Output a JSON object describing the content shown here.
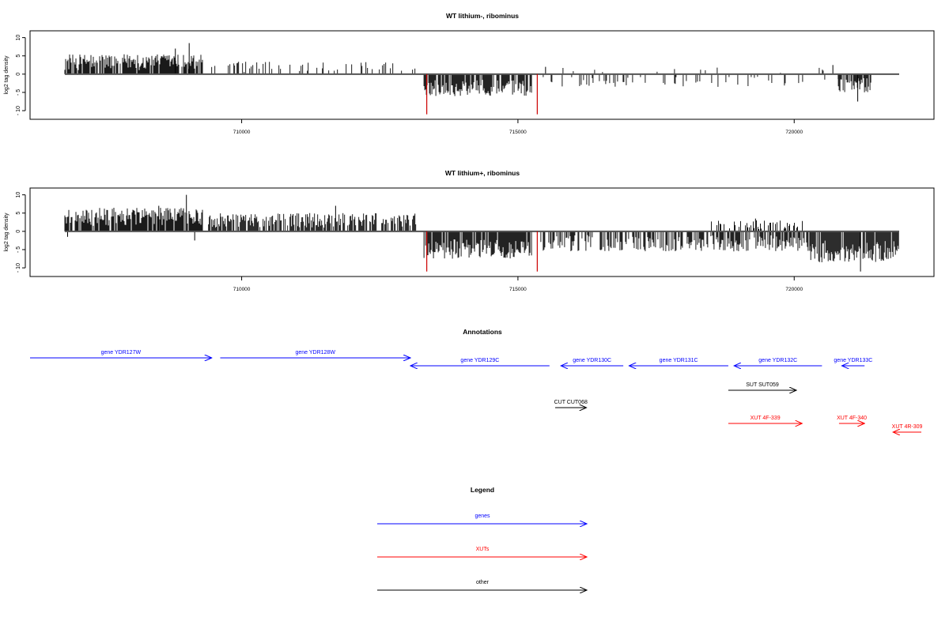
{
  "chart_data": [
    {
      "type": "bar",
      "title": "WT lithium-, ribominus",
      "ylabel": "log2 tag density",
      "ylim": [
        -11.5,
        11
      ],
      "yticks": [
        10,
        5,
        0,
        -5,
        -10
      ],
      "xlim": [
        706400,
        722300
      ],
      "xticks": [
        710000,
        715000,
        720000
      ],
      "bar_color": "#000000",
      "highlight_color": "#cc0000",
      "regions": [
        {
          "from": 706800,
          "to": 709300,
          "strand": "+",
          "min": 1.0,
          "max": 5.5,
          "density": 0.8
        },
        {
          "from": 709400,
          "to": 713150,
          "strand": "+",
          "min": 0.5,
          "max": 3.5,
          "density": 0.22
        },
        {
          "from": 713300,
          "to": 715250,
          "strand": "-",
          "min": 1.5,
          "max": 6.0,
          "density": 0.8
        },
        {
          "from": 715400,
          "to": 720800,
          "strand": "-",
          "min": 0.5,
          "max": 3.5,
          "density": 0.12
        },
        {
          "from": 715400,
          "to": 720800,
          "strand": "+",
          "min": 0.3,
          "max": 1.8,
          "density": 0.05
        },
        {
          "from": 720800,
          "to": 721400,
          "strand": "-",
          "min": 1.0,
          "max": 5.0,
          "density": 0.7
        }
      ],
      "peaks": [
        {
          "x": 708800,
          "y": 7.0
        },
        {
          "x": 709050,
          "y": 8.5
        },
        {
          "x": 720700,
          "y": 2.5
        },
        {
          "x": 721150,
          "y": -7.5
        },
        {
          "x": 715500,
          "y": 2.0
        }
      ],
      "highlights": [
        {
          "x": 713350,
          "y": -11.0
        },
        {
          "x": 715350,
          "y": -11.0
        }
      ]
    },
    {
      "type": "bar",
      "title": "WT lithium+, ribominus",
      "ylabel": "log2 tag density",
      "ylim": [
        -11.5,
        11
      ],
      "yticks": [
        10,
        5,
        0,
        -5,
        -10
      ],
      "xlim": [
        706400,
        722300
      ],
      "xticks": [
        710000,
        715000,
        720000
      ],
      "bar_color": "#000000",
      "highlight_color": "#cc0000",
      "regions": [
        {
          "from": 706800,
          "to": 709300,
          "strand": "+",
          "min": 1.5,
          "max": 6.5,
          "density": 0.9
        },
        {
          "from": 709400,
          "to": 713150,
          "strand": "+",
          "min": 1.0,
          "max": 5.0,
          "density": 0.7
        },
        {
          "from": 713300,
          "to": 715250,
          "strand": "-",
          "min": 2.0,
          "max": 7.5,
          "density": 0.9
        },
        {
          "from": 715400,
          "to": 720300,
          "strand": "-",
          "min": 1.0,
          "max": 5.5,
          "density": 0.6
        },
        {
          "from": 718500,
          "to": 720200,
          "strand": "+",
          "min": 0.5,
          "max": 3.0,
          "density": 0.35
        },
        {
          "from": 720300,
          "to": 721900,
          "strand": "-",
          "min": 2.5,
          "max": 8.5,
          "density": 0.9
        }
      ],
      "peaks": [
        {
          "x": 709000,
          "y": 10.0
        },
        {
          "x": 708500,
          "y": 7.0
        },
        {
          "x": 711700,
          "y": 7.0
        },
        {
          "x": 721200,
          "y": -11.0
        },
        {
          "x": 709150,
          "y": -2.5
        },
        {
          "x": 706850,
          "y": -1.5
        },
        {
          "x": 719300,
          "y": 3.5
        }
      ],
      "highlights": [
        {
          "x": 713350,
          "y": -11.0
        },
        {
          "x": 715350,
          "y": -11.0
        }
      ]
    }
  ],
  "annotations": {
    "title": "Annotations",
    "items": [
      {
        "label": "gene YDR127W",
        "from": 706450,
        "to": 709650,
        "dir": "right",
        "color": "#0000ff",
        "row": 0
      },
      {
        "label": "gene YDR128W",
        "from": 709800,
        "to": 713150,
        "dir": "right",
        "color": "#0000ff",
        "row": 0
      },
      {
        "label": "gene YDR129C",
        "from": 713150,
        "to": 715600,
        "dir": "left",
        "color": "#0000ff",
        "row": 1
      },
      {
        "label": "gene YDR130C",
        "from": 715800,
        "to": 716900,
        "dir": "left",
        "color": "#0000ff",
        "row": 1
      },
      {
        "label": "gene YDR131C",
        "from": 717000,
        "to": 718750,
        "dir": "left",
        "color": "#0000ff",
        "row": 1
      },
      {
        "label": "gene YDR132C",
        "from": 718850,
        "to": 720400,
        "dir": "left",
        "color": "#0000ff",
        "row": 1
      },
      {
        "label": "gene YDR133C",
        "from": 720750,
        "to": 721150,
        "dir": "left",
        "color": "#0000ff",
        "row": 1
      },
      {
        "label": "SUT SUT059",
        "from": 718750,
        "to": 719950,
        "dir": "right",
        "color": "#000000",
        "row": 2
      },
      {
        "label": "CUT CUT068",
        "from": 715700,
        "to": 716250,
        "dir": "right",
        "color": "#000000",
        "row": 3
      },
      {
        "label": "XUT 4F-339",
        "from": 718750,
        "to": 720050,
        "dir": "right",
        "color": "#ff0000",
        "row": 4
      },
      {
        "label": "XUT 4F-340",
        "from": 720700,
        "to": 721150,
        "dir": "right",
        "color": "#ff0000",
        "row": 4
      },
      {
        "label": "XUT 4R-309",
        "from": 721650,
        "to": 722150,
        "dir": "left",
        "color": "#ff0000",
        "row": 5
      }
    ]
  },
  "legend": {
    "title": "Legend",
    "items": [
      {
        "label": "genes",
        "color": "#0000ff"
      },
      {
        "label": "XUTs",
        "color": "#ff0000"
      },
      {
        "label": "other",
        "color": "#000000"
      }
    ]
  }
}
